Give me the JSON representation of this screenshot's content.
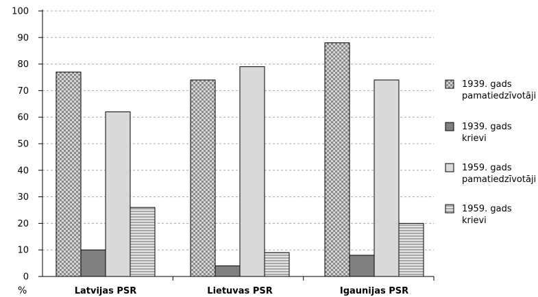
{
  "chart_data": {
    "type": "bar",
    "title": "",
    "xlabel": "",
    "ylabel": "%",
    "ylim": [
      0,
      100
    ],
    "yticks": [
      0,
      10,
      20,
      30,
      40,
      50,
      60,
      70,
      80,
      90,
      100
    ],
    "grid": "horizontal-dashed",
    "legend_position": "right",
    "categories": [
      "Latvijas PSR",
      "Lietuvas PSR",
      "Igaunijas PSR"
    ],
    "series": [
      {
        "name": "1939. gads pamatiedzīvotāji",
        "legend_lines": [
          "1939. gads",
          "pamatiedzīvotāji"
        ],
        "values": [
          77,
          74,
          88
        ],
        "fill": "checker",
        "colors": [
          "#8a8a8a",
          "#d6d6d6"
        ]
      },
      {
        "name": "1939. gads krievi",
        "legend_lines": [
          "1939. gads",
          "krievi"
        ],
        "values": [
          10,
          4,
          8
        ],
        "fill": "solid",
        "colors": [
          "#808080"
        ]
      },
      {
        "name": "1959. gads pamatiedzīvotāji",
        "legend_lines": [
          "1959. gads",
          "pamatiedzīvotāji"
        ],
        "values": [
          62,
          79,
          74
        ],
        "fill": "solid",
        "colors": [
          "#d9d9d9"
        ]
      },
      {
        "name": "1959. gads krievi",
        "legend_lines": [
          "1959. gads",
          "krievi"
        ],
        "values": [
          26,
          9,
          20
        ],
        "fill": "stripes",
        "colors": [
          "#a6a6a6",
          "#e6e6e6"
        ]
      }
    ]
  }
}
